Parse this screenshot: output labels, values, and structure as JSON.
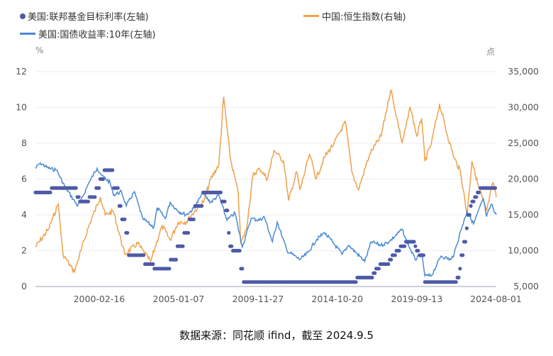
{
  "chart_data": {
    "type": "line",
    "legend": [
      {
        "name": "美国:联邦基金目标利率(左轴)",
        "color": "#4e5aa6",
        "style": "dot"
      },
      {
        "name": "中国:恒生指数(右轴)",
        "color": "#f0a04b",
        "style": "line"
      },
      {
        "name": "美国:国债收益率:10年(左轴)",
        "color": "#4a8ad4",
        "style": "line"
      }
    ],
    "legend_position": "top",
    "left_unit": "%",
    "right_unit": "点",
    "ylim_left": [
      0,
      12
    ],
    "ylim_right": [
      5000,
      35000
    ],
    "yticks_left": [
      "0",
      "2",
      "4",
      "6",
      "8",
      "10",
      "12"
    ],
    "yticks_right": [
      "5,000",
      "10,000",
      "15,000",
      "20,000",
      "25,000",
      "30,000",
      "35,000"
    ],
    "xlim": [
      1996.2,
      2024.6
    ],
    "xticks": [
      {
        "label": "2000-02-16",
        "t": 2000.13
      },
      {
        "label": "2005-01-07",
        "t": 2005.02
      },
      {
        "label": "2009-11-27",
        "t": 2009.91
      },
      {
        "label": "2014-10-20",
        "t": 2014.8
      },
      {
        "label": "2019-09-13",
        "t": 2019.7
      },
      {
        "label": "2024-08-01",
        "t": 2024.58
      }
    ],
    "fed_rate_steps": [
      [
        1996.2,
        5.25
      ],
      [
        1997.2,
        5.5
      ],
      [
        1998.75,
        5.0
      ],
      [
        1998.9,
        4.75
      ],
      [
        1999.5,
        5.0
      ],
      [
        1999.9,
        5.5
      ],
      [
        2000.2,
        6.0
      ],
      [
        2000.4,
        6.5
      ],
      [
        2001.0,
        5.5
      ],
      [
        2001.3,
        4.5
      ],
      [
        2001.5,
        3.75
      ],
      [
        2001.75,
        3.0
      ],
      [
        2001.9,
        1.75
      ],
      [
        2002.9,
        1.25
      ],
      [
        2003.5,
        1.0
      ],
      [
        2004.5,
        1.5
      ],
      [
        2004.9,
        2.25
      ],
      [
        2005.3,
        3.0
      ],
      [
        2005.7,
        3.75
      ],
      [
        2006.0,
        4.5
      ],
      [
        2006.5,
        5.25
      ],
      [
        2007.7,
        4.75
      ],
      [
        2007.9,
        4.25
      ],
      [
        2008.05,
        3.0
      ],
      [
        2008.2,
        2.25
      ],
      [
        2008.3,
        2.0
      ],
      [
        2008.8,
        1.0
      ],
      [
        2008.96,
        0.25
      ],
      [
        2015.96,
        0.5
      ],
      [
        2016.96,
        0.75
      ],
      [
        2017.2,
        1.0
      ],
      [
        2017.45,
        1.25
      ],
      [
        2017.96,
        1.5
      ],
      [
        2018.2,
        1.75
      ],
      [
        2018.45,
        2.0
      ],
      [
        2018.7,
        2.25
      ],
      [
        2018.96,
        2.5
      ],
      [
        2019.55,
        2.25
      ],
      [
        2019.7,
        2.0
      ],
      [
        2019.83,
        1.75
      ],
      [
        2020.17,
        0.25
      ],
      [
        2022.2,
        0.5
      ],
      [
        2022.35,
        1.0
      ],
      [
        2022.45,
        1.75
      ],
      [
        2022.55,
        2.5
      ],
      [
        2022.72,
        3.25
      ],
      [
        2022.84,
        4.0
      ],
      [
        2022.96,
        4.5
      ],
      [
        2023.1,
        4.75
      ],
      [
        2023.22,
        5.0
      ],
      [
        2023.4,
        5.25
      ],
      [
        2023.56,
        5.5
      ],
      [
        2024.6,
        5.5
      ]
    ],
    "us10y": [
      [
        1996.2,
        6.6
      ],
      [
        1996.5,
        6.9
      ],
      [
        1997.0,
        6.6
      ],
      [
        1997.5,
        6.5
      ],
      [
        1998.0,
        5.6
      ],
      [
        1998.8,
        4.5
      ],
      [
        1999.0,
        4.8
      ],
      [
        1999.5,
        5.8
      ],
      [
        2000.0,
        6.6
      ],
      [
        2000.3,
        6.2
      ],
      [
        2000.8,
        5.8
      ],
      [
        2001.0,
        5.1
      ],
      [
        2001.5,
        5.3
      ],
      [
        2001.8,
        4.5
      ],
      [
        2002.3,
        5.3
      ],
      [
        2002.8,
        3.8
      ],
      [
        2003.5,
        3.3
      ],
      [
        2003.7,
        4.4
      ],
      [
        2004.2,
        3.8
      ],
      [
        2004.5,
        4.7
      ],
      [
        2005.0,
        4.2
      ],
      [
        2005.5,
        4.0
      ],
      [
        2006.0,
        4.4
      ],
      [
        2006.5,
        5.2
      ],
      [
        2007.0,
        4.7
      ],
      [
        2007.5,
        5.1
      ],
      [
        2008.0,
        3.7
      ],
      [
        2008.5,
        4.1
      ],
      [
        2008.95,
        2.2
      ],
      [
        2009.5,
        3.8
      ],
      [
        2010.0,
        3.7
      ],
      [
        2010.3,
        3.9
      ],
      [
        2010.8,
        2.5
      ],
      [
        2011.1,
        3.6
      ],
      [
        2011.7,
        2.0
      ],
      [
        2012.5,
        1.5
      ],
      [
        2013.0,
        1.9
      ],
      [
        2013.5,
        2.6
      ],
      [
        2014.0,
        3.0
      ],
      [
        2014.5,
        2.5
      ],
      [
        2015.1,
        1.8
      ],
      [
        2015.5,
        2.3
      ],
      [
        2016.5,
        1.4
      ],
      [
        2016.9,
        2.5
      ],
      [
        2017.5,
        2.3
      ],
      [
        2018.0,
        2.5
      ],
      [
        2018.8,
        3.2
      ],
      [
        2019.0,
        2.7
      ],
      [
        2019.6,
        1.5
      ],
      [
        2020.0,
        1.8
      ],
      [
        2020.2,
        0.6
      ],
      [
        2020.6,
        0.6
      ],
      [
        2021.2,
        1.7
      ],
      [
        2021.8,
        1.5
      ],
      [
        2022.0,
        1.8
      ],
      [
        2022.4,
        3.1
      ],
      [
        2022.8,
        4.2
      ],
      [
        2023.2,
        3.5
      ],
      [
        2023.8,
        4.9
      ],
      [
        2024.0,
        3.9
      ],
      [
        2024.3,
        4.6
      ],
      [
        2024.6,
        4.0
      ]
    ],
    "hsi": [
      [
        1996.2,
        10500
      ],
      [
        1997.0,
        13000
      ],
      [
        1997.6,
        16500
      ],
      [
        1997.9,
        9500
      ],
      [
        1998.6,
        7000
      ],
      [
        1999.0,
        10000
      ],
      [
        1999.5,
        13500
      ],
      [
        2000.2,
        17500
      ],
      [
        2000.5,
        15000
      ],
      [
        2001.0,
        15500
      ],
      [
        2001.7,
        9500
      ],
      [
        2002.5,
        11000
      ],
      [
        2003.3,
        8500
      ],
      [
        2004.0,
        13500
      ],
      [
        2004.5,
        11500
      ],
      [
        2005.0,
        14000
      ],
      [
        2005.5,
        14000
      ],
      [
        2006.0,
        15500
      ],
      [
        2006.6,
        17000
      ],
      [
        2007.0,
        20000
      ],
      [
        2007.5,
        22000
      ],
      [
        2007.8,
        31500
      ],
      [
        2008.2,
        23000
      ],
      [
        2008.7,
        18000
      ],
      [
        2008.85,
        11000
      ],
      [
        2009.2,
        13000
      ],
      [
        2009.6,
        20500
      ],
      [
        2010.0,
        21500
      ],
      [
        2010.5,
        20000
      ],
      [
        2010.9,
        24000
      ],
      [
        2011.5,
        22500
      ],
      [
        2011.8,
        17000
      ],
      [
        2012.3,
        21000
      ],
      [
        2012.5,
        18500
      ],
      [
        2013.1,
        23500
      ],
      [
        2013.5,
        20000
      ],
      [
        2014.0,
        23000
      ],
      [
        2014.6,
        25000
      ],
      [
        2015.3,
        28000
      ],
      [
        2015.7,
        21000
      ],
      [
        2016.1,
        18500
      ],
      [
        2016.8,
        23500
      ],
      [
        2017.5,
        26000
      ],
      [
        2018.1,
        32500
      ],
      [
        2018.8,
        25000
      ],
      [
        2019.3,
        30000
      ],
      [
        2019.7,
        26000
      ],
      [
        2020.0,
        28500
      ],
      [
        2020.2,
        22500
      ],
      [
        2020.6,
        25000
      ],
      [
        2021.1,
        30500
      ],
      [
        2021.6,
        26000
      ],
      [
        2022.0,
        23000
      ],
      [
        2022.4,
        21000
      ],
      [
        2022.8,
        15000
      ],
      [
        2023.1,
        22500
      ],
      [
        2023.5,
        19000
      ],
      [
        2024.0,
        15500
      ],
      [
        2024.4,
        19500
      ],
      [
        2024.6,
        17500
      ]
    ]
  },
  "footer": "数据来源：同花顺 ifind，截至 2024.9.5"
}
